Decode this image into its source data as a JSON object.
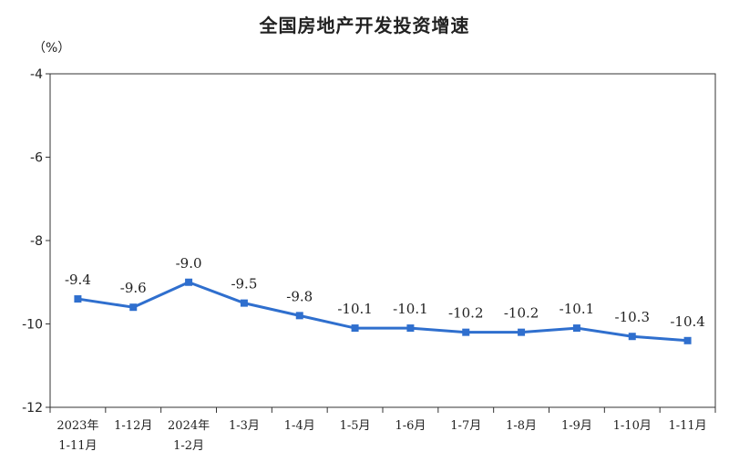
{
  "chart_data": {
    "type": "line",
    "title": "全国房地产开发投资增速",
    "ylabel": "（%）",
    "xlabel": "",
    "ylim": [
      -12,
      -4
    ],
    "yticks": [
      -4,
      -6,
      -8,
      -10,
      -12
    ],
    "categories": [
      [
        "2023年",
        "1-11月"
      ],
      [
        "1-12月"
      ],
      [
        "2024年",
        "1-2月"
      ],
      [
        "1-3月"
      ],
      [
        "1-4月"
      ],
      [
        "1-5月"
      ],
      [
        "1-6月"
      ],
      [
        "1-7月"
      ],
      [
        "1-8月"
      ],
      [
        "1-9月"
      ],
      [
        "1-10月"
      ],
      [
        "1-11月"
      ]
    ],
    "values": [
      -9.4,
      -9.6,
      -9.0,
      -9.5,
      -9.8,
      -10.1,
      -10.1,
      -10.2,
      -10.2,
      -10.1,
      -10.3,
      -10.4
    ],
    "data_labels": [
      "-9.4",
      "-9.6",
      "-9.0",
      "-9.5",
      "-9.8",
      "-10.1",
      "-10.1",
      "-10.2",
      "-10.2",
      "-10.1",
      "-10.3",
      "-10.4"
    ],
    "grid": false,
    "line_color": "#2f6fce"
  }
}
